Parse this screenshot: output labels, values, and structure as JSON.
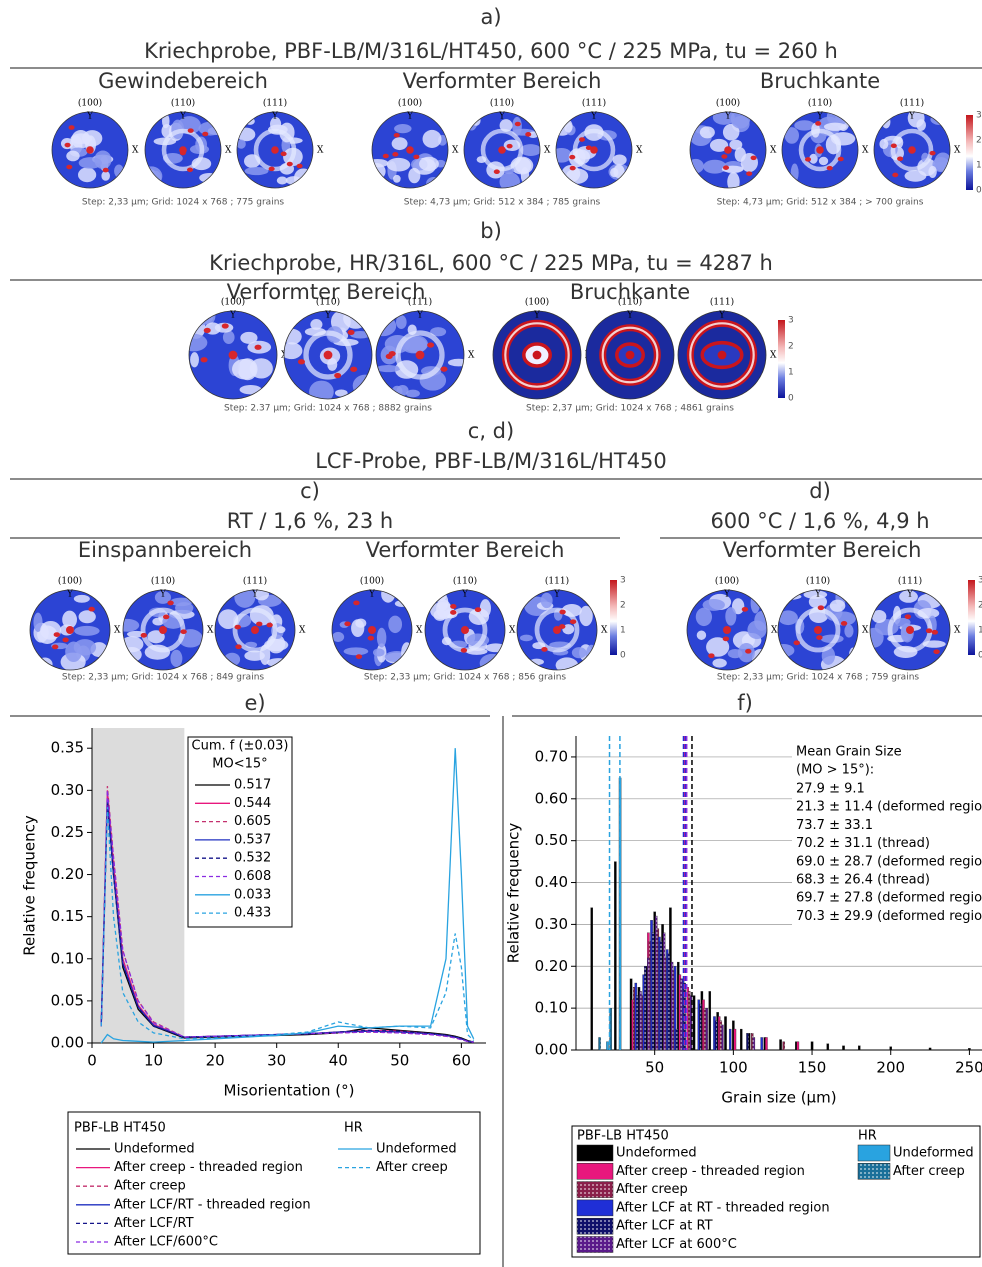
{
  "panels": [
    {
      "label": "a)",
      "title": "Kriechprobe, PBF-LB/M/316L/HT450, 600 °C /  225 MPa, tu =  260 h",
      "groups": [
        {
          "title": "Gewindebereich",
          "caption": "Step: 2,33 µm; Grid: 1024 x 768 ; 775 grains"
        },
        {
          "title": "Verformter Bereich",
          "caption": "Step: 4,73 µm; Grid: 512 x 384 ; 785 grains"
        },
        {
          "title": "Bruchkante",
          "caption": "Step: 4,73 µm; Grid: 512 x 384 ; > 700 grains"
        }
      ]
    },
    {
      "label": "b)",
      "title": "Kriechprobe, HR/316L, 600 °C /  225 MPa, tu =  4287 h",
      "groups": [
        {
          "title": "Verformter Bereich",
          "caption": "Step: 2.37 µm; Grid: 1024 x 768 ; 8882 grains"
        },
        {
          "title": "Bruchkante",
          "caption": "Step: 2,37 µm; Grid: 1024 x 768 ; 4861 grains"
        }
      ]
    },
    {
      "label": "c, d)",
      "title": "LCF-Probe, PBF-LB/M/316L/HT450",
      "subpanels": [
        {
          "label": "c)",
          "title": "RT /  1,6 %, 23 h",
          "groups": [
            {
              "title": "Einspannbereich",
              "caption": "Step: 2,33 µm; Grid: 1024 x 768 ; 849 grains"
            },
            {
              "title": "Verformter Bereich",
              "caption": "Step: 2,33 µm; Grid: 1024 x 768 ; 856 grains"
            }
          ]
        },
        {
          "label": "d)",
          "title": "600 °C / 1,6 %, 4,9 h",
          "groups": [
            {
              "title": "Verformter Bereich",
              "caption": "Step: 2,33 µm; Grid: 1024 x 768 ; 759 grains"
            }
          ]
        }
      ]
    }
  ],
  "pole_labels": [
    "(100)",
    "(110)",
    "(111)"
  ],
  "axis_letters": {
    "y": "Y",
    "x": "X"
  },
  "colorbar_ticks": [
    3,
    2,
    1,
    0
  ],
  "chart_data": [
    {
      "type": "line",
      "panel_label": "e)",
      "x_label": "Misorientation (°)",
      "y_label": "Relative frequency",
      "xlim": [
        0,
        64
      ],
      "ylim": [
        0,
        0.374
      ],
      "xticks": [
        0,
        10,
        20,
        30,
        40,
        50,
        60
      ],
      "yticks": [
        {
          "value": 0,
          "label": "0.00"
        },
        {
          "value": 0.05,
          "label": "0.05"
        },
        {
          "value": 0.1,
          "label": "0.10"
        },
        {
          "value": 0.15,
          "label": "0.15"
        },
        {
          "value": 0.2,
          "label": "0.20"
        },
        {
          "value": 0.25,
          "label": "0.25"
        },
        {
          "value": 0.3,
          "label": "0.30"
        },
        {
          "value": 0.35,
          "label": "0.35"
        }
      ],
      "highlight_xrange": [
        0,
        15
      ],
      "legend_title": "Cum. f (±0.03)",
      "legend_subtitle": "MO<15°",
      "legend_groups": [
        "PBF-LB HT450",
        "HR"
      ],
      "x": [
        1.5,
        2.5,
        3.5,
        5,
        7.5,
        10,
        15,
        20,
        25,
        30,
        35,
        40,
        45,
        50,
        55,
        57.5,
        59,
        60,
        61,
        62
      ],
      "series": [
        {
          "name": "Undeformed",
          "group": 0,
          "cum_f": 0.517,
          "color": "#000000",
          "dash": false,
          "values": [
            0.02,
            0.29,
            0.2,
            0.09,
            0.04,
            0.02,
            0.006,
            0.007,
            0.008,
            0.009,
            0.01,
            0.012,
            0.018,
            0.015,
            0.012,
            0.01,
            0.008,
            0.006,
            0.003,
            0.001
          ]
        },
        {
          "name": "After creep - threaded region",
          "group": 0,
          "cum_f": 0.544,
          "color": "#e8177d",
          "dash": false,
          "values": [
            0.02,
            0.3,
            0.21,
            0.1,
            0.045,
            0.022,
            0.007,
            0.008,
            0.009,
            0.01,
            0.011,
            0.013,
            0.015,
            0.014,
            0.011,
            0.009,
            0.007,
            0.005,
            0.002,
            0.001
          ]
        },
        {
          "name": "After creep",
          "group": 0,
          "cum_f": 0.605,
          "color": "#c4306e",
          "dash": true,
          "values": [
            0.02,
            0.305,
            0.22,
            0.11,
            0.05,
            0.025,
            0.007,
            0.008,
            0.009,
            0.01,
            0.011,
            0.012,
            0.013,
            0.012,
            0.01,
            0.008,
            0.006,
            0.004,
            0.002,
            0.001
          ]
        },
        {
          "name": "After LCF/RT - threaded region",
          "group": 0,
          "cum_f": 0.537,
          "color": "#2030c0",
          "dash": false,
          "values": [
            0.02,
            0.29,
            0.2,
            0.095,
            0.043,
            0.021,
            0.007,
            0.008,
            0.009,
            0.01,
            0.011,
            0.013,
            0.014,
            0.013,
            0.011,
            0.009,
            0.007,
            0.005,
            0.002,
            0.001
          ]
        },
        {
          "name": "After LCF/RT",
          "group": 0,
          "cum_f": 0.532,
          "color": "#15158a",
          "dash": true,
          "values": [
            0.02,
            0.285,
            0.2,
            0.093,
            0.042,
            0.02,
            0.007,
            0.008,
            0.009,
            0.01,
            0.011,
            0.013,
            0.015,
            0.014,
            0.011,
            0.009,
            0.007,
            0.005,
            0.002,
            0.001
          ]
        },
        {
          "name": "After LCF/600°C",
          "group": 0,
          "cum_f": 0.608,
          "color": "#8a2be2",
          "dash": true,
          "values": [
            0.02,
            0.3,
            0.22,
            0.11,
            0.05,
            0.024,
            0.007,
            0.008,
            0.009,
            0.01,
            0.011,
            0.012,
            0.013,
            0.012,
            0.01,
            0.008,
            0.006,
            0.004,
            0.002,
            0.001
          ]
        },
        {
          "name": "Undeformed",
          "group": 1,
          "cum_f": 0.033,
          "color": "#29a3e0",
          "dash": false,
          "values": [
            0.0,
            0.01,
            0.005,
            0.003,
            0.002,
            0.001,
            0.003,
            0.005,
            0.007,
            0.009,
            0.012,
            0.02,
            0.018,
            0.02,
            0.02,
            0.1,
            0.35,
            0.2,
            0.02,
            0.005
          ]
        },
        {
          "name": "After creep",
          "group": 1,
          "cum_f": 0.433,
          "color": "#29a3e0",
          "dash": true,
          "values": [
            0.02,
            0.28,
            0.15,
            0.06,
            0.025,
            0.012,
            0.005,
            0.006,
            0.008,
            0.01,
            0.013,
            0.025,
            0.018,
            0.02,
            0.018,
            0.06,
            0.13,
            0.09,
            0.01,
            0.003
          ]
        }
      ]
    },
    {
      "type": "bar",
      "panel_label": "f)",
      "x_label": "Grain size (µm)",
      "y_label": "Relative frequency",
      "xlim": [
        0,
        258
      ],
      "ylim": [
        0,
        0.75
      ],
      "xticks": [
        50,
        100,
        150,
        200,
        250
      ],
      "yticks": [
        {
          "value": 0,
          "label": "0.00"
        },
        {
          "value": 0.1,
          "label": "0.10"
        },
        {
          "value": 0.2,
          "label": "0.20"
        },
        {
          "value": 0.3,
          "label": "0.30"
        },
        {
          "value": 0.4,
          "label": "0.40"
        },
        {
          "value": 0.5,
          "label": "0.50"
        },
        {
          "value": 0.6,
          "label": "0.60"
        },
        {
          "value": 0.7,
          "label": "0.70"
        }
      ],
      "means_title": "Mean Grain Size",
      "means_subtitle": "(MO > 15°):",
      "legend_groups": [
        "PBF-LB HT450",
        "HR"
      ],
      "series": [
        {
          "name": "Undeformed",
          "group": 0,
          "color": "#000000",
          "pattern": false,
          "x": [
            10,
            25,
            35,
            40,
            45,
            50,
            55,
            60,
            65,
            75,
            80,
            85,
            90,
            95,
            100,
            105,
            110,
            120,
            130,
            140,
            150,
            160,
            170,
            180,
            200,
            225,
            250
          ],
          "values": [
            0.34,
            0.45,
            0.17,
            0.15,
            0.2,
            0.33,
            0.3,
            0.34,
            0.21,
            0.13,
            0.14,
            0.14,
            0.09,
            0.08,
            0.07,
            0.05,
            0.04,
            0.03,
            0.025,
            0.02,
            0.02,
            0.015,
            0.01,
            0.01,
            0.008,
            0.005,
            0.004
          ]
        },
        {
          "name": "After creep - threaded region",
          "group": 0,
          "color": "#e8177d",
          "pattern": false,
          "x": [
            36,
            46,
            51,
            56,
            61,
            66,
            71,
            81,
            91,
            101,
            121,
            141
          ],
          "values": [
            0.12,
            0.28,
            0.3,
            0.25,
            0.2,
            0.18,
            0.15,
            0.12,
            0.08,
            0.05,
            0.03,
            0.02
          ]
        },
        {
          "name": "After creep",
          "group": 0,
          "color": "#8a1f4a",
          "pattern": true,
          "x": [
            37,
            42,
            47,
            52,
            57,
            62,
            72,
            82,
            92,
            112,
            132
          ],
          "values": [
            0.15,
            0.13,
            0.26,
            0.29,
            0.22,
            0.19,
            0.14,
            0.1,
            0.07,
            0.04,
            0.02
          ]
        },
        {
          "name": "After LCF at RT - threaded region",
          "group": 0,
          "color": "#1f2fd6",
          "pattern": false,
          "x": [
            38,
            43,
            48,
            53,
            58,
            63,
            68,
            78,
            88,
            98,
            118
          ],
          "values": [
            0.16,
            0.18,
            0.31,
            0.27,
            0.24,
            0.2,
            0.17,
            0.12,
            0.08,
            0.05,
            0.03
          ]
        },
        {
          "name": "After LCF at RT",
          "group": 0,
          "color": "#10106a",
          "pattern": true,
          "x": [
            39,
            44,
            49,
            54,
            59,
            64,
            69,
            79,
            89,
            109
          ],
          "values": [
            0.13,
            0.2,
            0.28,
            0.26,
            0.23,
            0.05,
            0.16,
            0.11,
            0.07,
            0.04
          ]
        },
        {
          "name": "After LCF at 600°C",
          "group": 0,
          "color": "#5a1a8a",
          "pattern": true,
          "x": [
            41,
            46,
            51,
            56,
            61,
            67,
            73,
            83,
            93,
            113
          ],
          "values": [
            0.14,
            0.22,
            0.32,
            0.28,
            0.21,
            0.17,
            0.13,
            0.1,
            0.06,
            0.03
          ]
        },
        {
          "name": "Undeformed",
          "group": 1,
          "color": "#29a3e0",
          "pattern": false,
          "x": [
            20,
            28
          ],
          "values": [
            0.02,
            0.65
          ]
        },
        {
          "name": "After creep",
          "group": 1,
          "color": "#1a6f99",
          "pattern": true,
          "x": [
            15,
            22
          ],
          "values": [
            0.03,
            0.1
          ]
        }
      ],
      "means": [
        {
          "label": "27.9 ± 9.1",
          "value": 27.9,
          "color": "#29a3e0"
        },
        {
          "label": "21.3 ± 11.4 (deformed region",
          "value": 21.3,
          "color": "#29a3e0"
        },
        {
          "label": "73.7 ± 33.1",
          "value": 73.7,
          "color": "#000000"
        },
        {
          "label": "70.2 ± 31.1 (thread)",
          "value": 70.2,
          "color": "#e8177d"
        },
        {
          "label": "69.0 ± 28.7 (deformed regio",
          "value": 69.0,
          "color": "#e8177d"
        },
        {
          "label": "68.3 ± 26.4 (thread)",
          "value": 68.3,
          "color": "#1f2fd6"
        },
        {
          "label": "69.7 ± 27.8 (deformed regio",
          "value": 69.7,
          "color": "#1f2fd6"
        },
        {
          "label": "70.3 ± 29.9 (deformed regio",
          "value": 70.3,
          "color": "#8a2be2"
        }
      ]
    }
  ]
}
